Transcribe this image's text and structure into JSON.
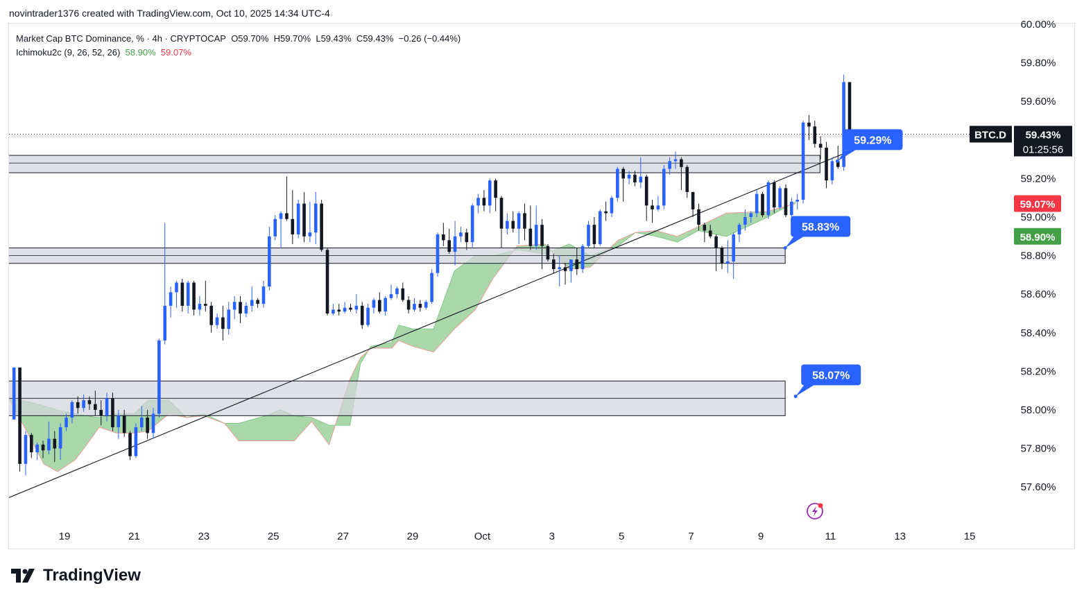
{
  "header": {
    "credit": "novintrader1376 created with TradingView.com, Oct 10, 2025 14:34 UTC-4"
  },
  "legend": {
    "symbol": "Market Cap BTC Dominance, % · 4h · CRYPTOCAP",
    "open": "O59.70%",
    "high": "H59.70%",
    "low": "L59.43%",
    "close": "C59.43%",
    "change": "−0.26 (−0.44%)",
    "indicator": "Ichimoku2c (9, 26, 52, 26)",
    "ind_val1": "58.90%",
    "ind_val2": "59.07%"
  },
  "footer": {
    "brand": "TradingView"
  },
  "colors": {
    "up": "#2962ff",
    "down": "#131722",
    "cloud": "#a5d6a7",
    "cloud_edge": "#ef9a9a",
    "zone": "#d1d4dc",
    "callout": "#2962ff"
  },
  "chart_data": {
    "type": "candlestick",
    "title": "Market Cap BTC Dominance, % · 4h · CRYPTOCAP",
    "ylim": [
      57.36,
      60.1
    ],
    "y_ticks": [
      "60.00%",
      "59.80%",
      "59.60%",
      "59.20%",
      "59.00%",
      "58.80%",
      "58.60%",
      "58.40%",
      "58.20%",
      "58.00%",
      "57.80%",
      "57.60%"
    ],
    "x_ticks": [
      {
        "label": "19",
        "day": 1
      },
      {
        "label": "21",
        "day": 3
      },
      {
        "label": "23",
        "day": 5
      },
      {
        "label": "25",
        "day": 7
      },
      {
        "label": "27",
        "day": 9
      },
      {
        "label": "29",
        "day": 11
      },
      {
        "label": "Oct",
        "day": 13
      },
      {
        "label": "3",
        "day": 15
      },
      {
        "label": "5",
        "day": 17
      },
      {
        "label": "7",
        "day": 19
      },
      {
        "label": "9",
        "day": 21
      },
      {
        "label": "11",
        "day": 23
      },
      {
        "label": "13",
        "day": 25
      },
      {
        "label": "15",
        "day": 27
      }
    ],
    "day_range": [
      -0.6,
      28.0
    ],
    "candles_day_start": -0.45,
    "candles_per_day": 6,
    "candles": [
      [
        57.95,
        58.22,
        57.95,
        58.22
      ],
      [
        58.22,
        58.22,
        57.68,
        57.72
      ],
      [
        57.72,
        57.89,
        57.66,
        57.87
      ],
      [
        57.87,
        57.88,
        57.75,
        57.78
      ],
      [
        57.78,
        57.83,
        57.74,
        57.82
      ],
      [
        57.82,
        57.84,
        57.75,
        57.79
      ],
      [
        57.79,
        57.94,
        57.77,
        57.85
      ],
      [
        57.85,
        57.89,
        57.73,
        57.8
      ],
      [
        57.8,
        57.93,
        57.74,
        57.91
      ],
      [
        57.91,
        57.98,
        57.89,
        57.96
      ],
      [
        57.96,
        58.05,
        57.93,
        58.04
      ],
      [
        58.04,
        58.07,
        57.98,
        58.01
      ],
      [
        58.01,
        58.08,
        57.99,
        58.05
      ],
      [
        58.05,
        58.07,
        58.0,
        58.03
      ],
      [
        58.03,
        58.1,
        57.97,
        58.0
      ],
      [
        58.0,
        58.05,
        57.92,
        57.97
      ],
      [
        57.97,
        58.09,
        57.94,
        58.06
      ],
      [
        58.06,
        58.09,
        57.89,
        57.91
      ],
      [
        57.91,
        58.0,
        57.85,
        57.97
      ],
      [
        57.97,
        58.0,
        57.86,
        57.88
      ],
      [
        57.88,
        57.89,
        57.74,
        57.76
      ],
      [
        57.76,
        57.93,
        57.75,
        57.91
      ],
      [
        57.91,
        58.02,
        57.89,
        57.96
      ],
      [
        57.96,
        58.0,
        57.85,
        57.88
      ],
      [
        57.88,
        58.01,
        57.85,
        57.98
      ],
      [
        57.98,
        58.37,
        57.96,
        58.36
      ],
      [
        58.36,
        58.97,
        58.34,
        58.54
      ],
      [
        58.54,
        58.64,
        58.48,
        58.61
      ],
      [
        58.61,
        58.67,
        58.53,
        58.66
      ],
      [
        58.66,
        58.68,
        58.51,
        58.54
      ],
      [
        58.54,
        58.67,
        58.5,
        58.66
      ],
      [
        58.66,
        58.67,
        58.49,
        58.52
      ],
      [
        58.52,
        58.59,
        58.49,
        58.55
      ],
      [
        58.55,
        58.67,
        58.51,
        58.54
      ],
      [
        58.54,
        58.56,
        58.4,
        58.44
      ],
      [
        58.44,
        58.5,
        58.42,
        58.48
      ],
      [
        58.48,
        58.54,
        58.36,
        58.42
      ],
      [
        58.42,
        58.56,
        58.39,
        58.52
      ],
      [
        58.52,
        58.59,
        58.47,
        58.56
      ],
      [
        58.56,
        58.59,
        58.45,
        58.5
      ],
      [
        58.5,
        58.56,
        58.48,
        58.54
      ],
      [
        58.54,
        58.64,
        58.51,
        58.57
      ],
      [
        58.57,
        58.58,
        58.53,
        58.55
      ],
      [
        58.55,
        58.67,
        58.53,
        58.64
      ],
      [
        58.64,
        58.95,
        58.62,
        58.9
      ],
      [
        58.9,
        59.01,
        58.88,
        58.99
      ],
      [
        58.99,
        59.03,
        58.84,
        59.02
      ],
      [
        59.02,
        59.21,
        58.98,
        58.99
      ],
      [
        58.99,
        59.14,
        58.86,
        58.91
      ],
      [
        58.91,
        59.09,
        58.89,
        59.07
      ],
      [
        59.07,
        59.13,
        58.87,
        58.9
      ],
      [
        58.9,
        59.08,
        58.87,
        58.92
      ],
      [
        58.92,
        59.13,
        58.86,
        59.07
      ],
      [
        59.07,
        59.09,
        58.82,
        58.83
      ],
      [
        58.83,
        58.84,
        58.49,
        58.5
      ],
      [
        58.5,
        58.55,
        58.49,
        58.52
      ],
      [
        58.52,
        58.55,
        58.49,
        58.51
      ],
      [
        58.51,
        58.56,
        58.5,
        58.53
      ],
      [
        58.53,
        58.55,
        58.51,
        58.52
      ],
      [
        58.52,
        58.6,
        58.5,
        58.54
      ],
      [
        58.54,
        58.56,
        58.42,
        58.44
      ],
      [
        58.44,
        58.55,
        58.43,
        58.53
      ],
      [
        58.53,
        58.58,
        58.5,
        58.57
      ],
      [
        58.57,
        58.61,
        58.5,
        58.51
      ],
      [
        58.51,
        58.59,
        58.49,
        58.58
      ],
      [
        58.58,
        58.65,
        58.57,
        58.6
      ],
      [
        58.6,
        58.64,
        58.58,
        58.63
      ],
      [
        58.63,
        58.66,
        58.56,
        58.57
      ],
      [
        58.57,
        58.59,
        58.5,
        58.52
      ],
      [
        58.52,
        58.58,
        58.51,
        58.55
      ],
      [
        58.55,
        58.57,
        58.51,
        58.53
      ],
      [
        58.53,
        58.57,
        58.52,
        58.56
      ],
      [
        58.56,
        58.73,
        58.55,
        58.71
      ],
      [
        58.71,
        58.92,
        58.69,
        58.91
      ],
      [
        58.91,
        58.97,
        58.85,
        58.88
      ],
      [
        58.88,
        58.94,
        58.81,
        58.82
      ],
      [
        58.82,
        58.98,
        58.75,
        58.9
      ],
      [
        58.9,
        58.95,
        58.87,
        58.92
      ],
      [
        58.92,
        58.94,
        58.83,
        58.87
      ],
      [
        58.87,
        59.07,
        58.84,
        59.06
      ],
      [
        59.06,
        59.12,
        59.02,
        59.1
      ],
      [
        59.1,
        59.14,
        59.03,
        59.06
      ],
      [
        59.06,
        59.2,
        59.02,
        59.19
      ],
      [
        59.19,
        59.2,
        59.03,
        59.1
      ],
      [
        59.1,
        59.11,
        58.84,
        58.94
      ],
      [
        58.94,
        59.02,
        58.91,
        58.98
      ],
      [
        58.98,
        59.03,
        58.92,
        58.94
      ],
      [
        58.94,
        59.03,
        58.86,
        59.02
      ],
      [
        59.02,
        59.07,
        58.88,
        58.94
      ],
      [
        58.94,
        59.06,
        58.83,
        58.85
      ],
      [
        58.85,
        59.06,
        58.83,
        58.96
      ],
      [
        58.96,
        58.99,
        58.73,
        58.85
      ],
      [
        58.85,
        58.86,
        58.77,
        58.78
      ],
      [
        58.78,
        58.81,
        58.71,
        58.73
      ],
      [
        58.73,
        58.8,
        58.64,
        58.74
      ],
      [
        58.74,
        58.76,
        58.65,
        58.72
      ],
      [
        58.72,
        58.78,
        58.66,
        58.78
      ],
      [
        58.78,
        58.84,
        58.7,
        58.73
      ],
      [
        58.73,
        58.86,
        58.71,
        58.85
      ],
      [
        58.85,
        58.98,
        58.84,
        58.96
      ],
      [
        58.96,
        59.0,
        58.84,
        58.86
      ],
      [
        58.86,
        59.04,
        58.85,
        59.03
      ],
      [
        59.03,
        59.08,
        58.98,
        59.02
      ],
      [
        59.02,
        59.11,
        59.0,
        59.1
      ],
      [
        59.1,
        59.26,
        59.08,
        59.25
      ],
      [
        59.25,
        59.26,
        59.08,
        59.2
      ],
      [
        59.2,
        59.24,
        59.17,
        59.22
      ],
      [
        59.22,
        59.24,
        59.16,
        59.18
      ],
      [
        59.18,
        59.31,
        59.15,
        59.21
      ],
      [
        59.21,
        59.22,
        58.98,
        59.06
      ],
      [
        59.06,
        59.09,
        58.97,
        59.04
      ],
      [
        59.04,
        59.11,
        59.03,
        59.06
      ],
      [
        59.06,
        59.27,
        59.04,
        59.25
      ],
      [
        59.25,
        59.31,
        59.22,
        59.29
      ],
      [
        59.29,
        59.34,
        59.25,
        59.3
      ],
      [
        59.3,
        59.31,
        59.14,
        59.26
      ],
      [
        59.26,
        59.27,
        59.1,
        59.13
      ],
      [
        59.13,
        59.13,
        59.0,
        59.04
      ],
      [
        59.04,
        59.07,
        58.93,
        58.96
      ],
      [
        58.96,
        58.97,
        58.87,
        58.93
      ],
      [
        58.93,
        58.96,
        58.89,
        58.9
      ],
      [
        58.9,
        58.91,
        58.72,
        58.84
      ],
      [
        58.84,
        58.85,
        58.73,
        58.76
      ],
      [
        58.76,
        58.88,
        58.71,
        58.77
      ],
      [
        58.77,
        58.92,
        58.68,
        58.91
      ],
      [
        58.91,
        58.97,
        58.87,
        58.96
      ],
      [
        58.96,
        59.04,
        58.93,
        59.0
      ],
      [
        59.0,
        59.03,
        58.97,
        59.02
      ],
      [
        59.02,
        59.14,
        59.0,
        59.12
      ],
      [
        59.12,
        59.13,
        59.0,
        59.01
      ],
      [
        59.01,
        59.19,
        58.99,
        59.18
      ],
      [
        59.18,
        59.19,
        59.02,
        59.05
      ],
      [
        59.05,
        59.16,
        59.04,
        59.15
      ],
      [
        59.15,
        59.17,
        59.0,
        59.01
      ],
      [
        59.01,
        59.1,
        58.98,
        59.08
      ],
      [
        59.08,
        59.12,
        59.04,
        59.09
      ],
      [
        59.09,
        59.5,
        59.07,
        59.49
      ],
      [
        59.49,
        59.53,
        59.4,
        59.47
      ],
      [
        59.47,
        59.5,
        59.36,
        59.38
      ],
      [
        59.38,
        59.42,
        59.3,
        59.36
      ],
      [
        59.36,
        59.39,
        59.15,
        59.19
      ],
      [
        59.19,
        59.31,
        59.17,
        59.29
      ],
      [
        59.29,
        59.37,
        59.25,
        59.26
      ],
      [
        59.26,
        59.74,
        59.24,
        59.7
      ],
      [
        59.7,
        59.7,
        59.43,
        59.43
      ]
    ],
    "ichimoku": {
      "span_a_label": "58.90%",
      "span_b_label": "59.07%",
      "points": [
        [
          -0.6,
          58.06,
          58.06
        ],
        [
          0,
          58.04,
          57.86
        ],
        [
          0.4,
          58.02,
          57.72
        ],
        [
          0.8,
          58.0,
          57.68
        ],
        [
          1.3,
          57.98,
          57.74
        ],
        [
          1.6,
          57.97,
          57.81
        ],
        [
          2.0,
          57.96,
          57.91
        ],
        [
          2.5,
          57.98,
          57.88
        ],
        [
          3.0,
          57.98,
          57.88
        ],
        [
          3.4,
          58.05,
          57.89
        ],
        [
          4.0,
          58.05,
          57.98
        ],
        [
          4.5,
          57.96,
          57.96
        ],
        [
          5.0,
          57.98,
          57.97
        ],
        [
          5.6,
          57.93,
          57.93
        ],
        [
          6.0,
          57.93,
          57.84
        ],
        [
          6.8,
          57.97,
          57.84
        ],
        [
          7.2,
          58.0,
          57.84
        ],
        [
          7.6,
          57.97,
          57.84
        ],
        [
          8.1,
          57.96,
          57.94
        ],
        [
          8.6,
          57.92,
          57.82
        ],
        [
          9.2,
          57.92,
          58.16
        ],
        [
          9.5,
          58.24,
          58.27
        ],
        [
          9.8,
          58.33,
          58.32
        ],
        [
          10.4,
          58.35,
          58.32
        ],
        [
          10.6,
          58.44,
          58.36
        ],
        [
          11.0,
          58.42,
          58.33
        ],
        [
          11.6,
          58.42,
          58.3
        ],
        [
          12.2,
          58.72,
          58.42
        ],
        [
          12.8,
          58.8,
          58.52
        ],
        [
          13.3,
          58.8,
          58.68
        ],
        [
          14.0,
          58.83,
          58.85
        ],
        [
          14.8,
          58.81,
          58.86
        ],
        [
          15.5,
          58.86,
          58.73
        ],
        [
          16.1,
          58.8,
          58.74
        ],
        [
          16.9,
          58.85,
          58.88
        ],
        [
          17.4,
          58.92,
          58.92
        ],
        [
          18.0,
          58.9,
          58.93
        ],
        [
          18.6,
          58.87,
          58.9
        ],
        [
          19.2,
          58.93,
          58.95
        ],
        [
          20.0,
          58.9,
          59.02
        ],
        [
          21.2,
          59.0,
          59.03
        ],
        [
          22.0,
          59.08,
          59.07
        ]
      ]
    },
    "trendline": [
      [
        -0.8,
        57.53
      ],
      [
        23.8,
        59.36
      ]
    ],
    "zones": [
      {
        "from_day": -0.8,
        "to_day": 21.7,
        "top": 58.15,
        "bottom": 57.97,
        "mid": 58.06
      },
      {
        "from_day": -0.8,
        "to_day": 21.7,
        "top": 58.84,
        "bottom": 58.76,
        "mid": 58.8
      },
      {
        "from_day": -0.8,
        "to_day": 22.7,
        "top": 59.32,
        "bottom": 59.23,
        "mid": 59.28
      }
    ],
    "callouts": [
      {
        "label": "59.29%",
        "price": 59.29,
        "anchor_day": 23.2,
        "anchor_price": 59.29
      },
      {
        "label": "58.83%",
        "price": 58.83,
        "anchor_day": 21.7,
        "anchor_price": 58.84
      },
      {
        "label": "58.07%",
        "price": 58.07,
        "anchor_day": 22.0,
        "anchor_price": 58.07
      }
    ],
    "last_price": {
      "ticker": "BTC.D",
      "value": "59.43%",
      "price": 59.43,
      "countdown": "01:25:56"
    },
    "indicator_badges": [
      {
        "value": "59.07%",
        "price": 59.07,
        "color": "#f23645"
      },
      {
        "value": "58.90%",
        "price": 58.9,
        "color": "#43a047"
      }
    ]
  }
}
